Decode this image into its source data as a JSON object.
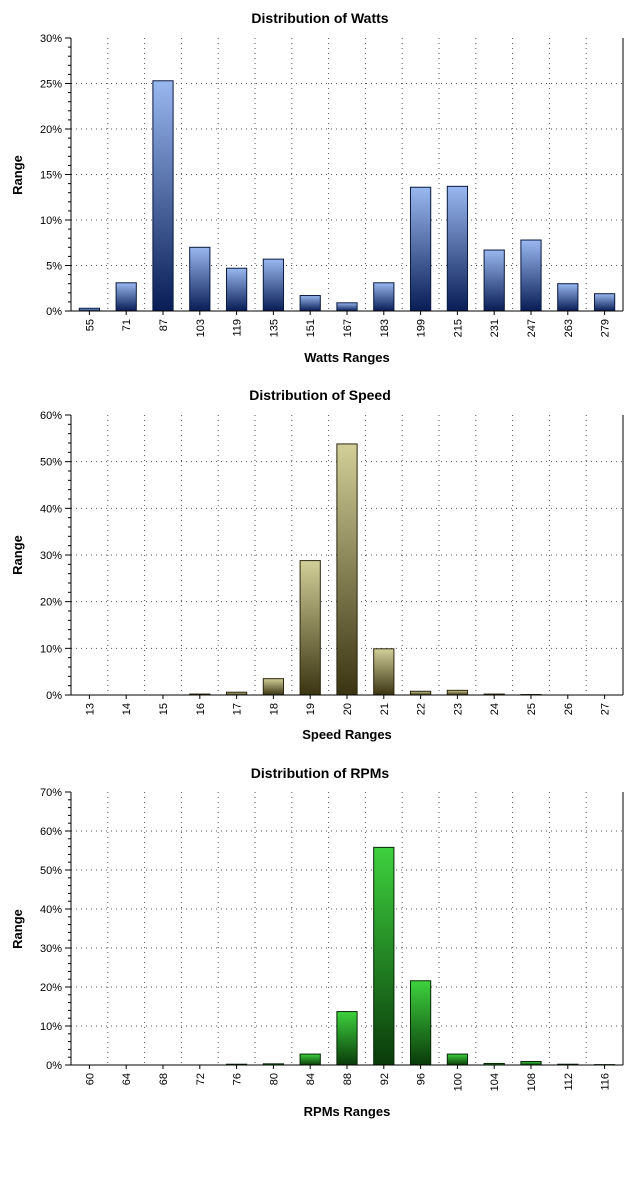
{
  "chart_data": [
    {
      "id": "watts",
      "type": "bar",
      "title": "Distribution of Watts",
      "xlabel": "Watts Ranges",
      "ylabel": "Range",
      "categories": [
        "55",
        "71",
        "87",
        "103",
        "119",
        "135",
        "151",
        "167",
        "183",
        "199",
        "215",
        "231",
        "247",
        "263",
        "279"
      ],
      "values": [
        0.3,
        3.1,
        25.3,
        7.0,
        4.7,
        5.7,
        1.7,
        0.9,
        3.1,
        13.6,
        13.7,
        6.7,
        7.8,
        3.0,
        1.9
      ],
      "ylim": [
        0,
        30
      ],
      "yticks": [
        0,
        5,
        10,
        15,
        20,
        25,
        30
      ],
      "ytick_labels": [
        "0%",
        "5%",
        "10%",
        "15%",
        "20%",
        "25%",
        "30%"
      ],
      "grid": true,
      "colors": {
        "light": "#9ab8f0",
        "dark": "#081c55",
        "edge": "#0a1a40"
      }
    },
    {
      "id": "speed",
      "type": "bar",
      "title": "Distribution of Speed",
      "xlabel": "Speed Ranges",
      "ylabel": "Range",
      "categories": [
        "13",
        "14",
        "15",
        "16",
        "17",
        "18",
        "19",
        "20",
        "21",
        "22",
        "23",
        "24",
        "25",
        "26",
        "27"
      ],
      "values": [
        0,
        0,
        0,
        0.2,
        0.6,
        3.5,
        28.8,
        53.8,
        9.9,
        0.8,
        1.0,
        0.2,
        0.1,
        0,
        0
      ],
      "ylim": [
        0,
        60
      ],
      "yticks": [
        0,
        10,
        20,
        30,
        40,
        50,
        60
      ],
      "ytick_labels": [
        "0%",
        "10%",
        "20%",
        "30%",
        "40%",
        "50%",
        "60%"
      ],
      "grid": true,
      "colors": {
        "light": "#d2cf98",
        "dark": "#3a3412",
        "edge": "#2a2610"
      }
    },
    {
      "id": "rpm",
      "type": "bar",
      "title": "Distribution of RPMs",
      "xlabel": "RPMs Ranges",
      "ylabel": "Range",
      "categories": [
        "60",
        "64",
        "68",
        "72",
        "76",
        "80",
        "84",
        "88",
        "92",
        "96",
        "100",
        "104",
        "108",
        "112",
        "116"
      ],
      "values": [
        0,
        0,
        0,
        0,
        0.2,
        0.3,
        2.8,
        13.7,
        55.8,
        21.6,
        2.8,
        0.4,
        0.9,
        0.2,
        0.1
      ],
      "ylim": [
        0,
        70
      ],
      "yticks": [
        0,
        10,
        20,
        30,
        40,
        50,
        60,
        70
      ],
      "ytick_labels": [
        "0%",
        "10%",
        "20%",
        "30%",
        "40%",
        "50%",
        "60%",
        "70%"
      ],
      "grid": true,
      "colors": {
        "light": "#3ed23e",
        "dark": "#0a3a0a",
        "edge": "#062806"
      }
    }
  ]
}
